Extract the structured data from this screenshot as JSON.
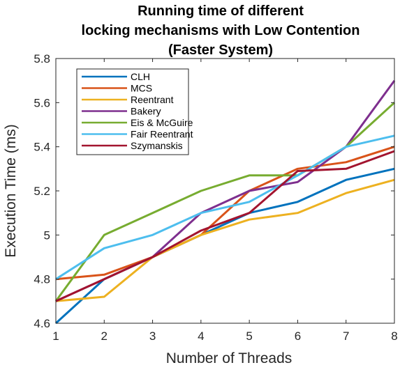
{
  "chart_data": {
    "type": "line",
    "title_lines": [
      "Running time of different",
      "locking mechanisms with Low Contention",
      "(Faster System)"
    ],
    "xlabel": "Number of Threads",
    "ylabel": "Execution Time (ms)",
    "xlim": [
      1,
      8
    ],
    "ylim": [
      4.6,
      5.8
    ],
    "xticks": [
      "1",
      "2",
      "3",
      "4",
      "5",
      "6",
      "7",
      "8"
    ],
    "yticks": [
      "4.6",
      "4.8",
      "5",
      "5.2",
      "5.4",
      "5.6",
      "5.8"
    ],
    "x": [
      1,
      2,
      3,
      4,
      5,
      6,
      7,
      8
    ],
    "grid": false,
    "legend_position": "top-left",
    "series": [
      {
        "name": "CLH",
        "color": "#0072BD",
        "values": [
          4.6,
          4.8,
          4.9,
          5.0,
          5.1,
          5.15,
          5.25,
          5.3
        ]
      },
      {
        "name": "MCS",
        "color": "#D95319",
        "values": [
          4.8,
          4.82,
          4.9,
          5.0,
          5.2,
          5.3,
          5.33,
          5.4
        ]
      },
      {
        "name": "Reentrant",
        "color": "#EDB120",
        "values": [
          4.7,
          4.72,
          4.9,
          5.0,
          5.07,
          5.1,
          5.19,
          5.25
        ]
      },
      {
        "name": "Bakery",
        "color": "#7E2F8E",
        "values": [
          4.7,
          4.8,
          4.9,
          5.1,
          5.2,
          5.24,
          5.4,
          5.7
        ]
      },
      {
        "name": "Eis & McGuire",
        "color": "#77AC30",
        "values": [
          4.7,
          5.0,
          5.1,
          5.2,
          5.27,
          5.27,
          5.4,
          5.6
        ]
      },
      {
        "name": "Fair Reentrant",
        "color": "#4DBEEE",
        "values": [
          4.8,
          4.94,
          5.0,
          5.1,
          5.15,
          5.27,
          5.4,
          5.45
        ]
      },
      {
        "name": "Szymanskis",
        "color": "#A2142F",
        "values": [
          4.7,
          4.8,
          4.9,
          5.02,
          5.1,
          5.29,
          5.3,
          5.38
        ]
      }
    ]
  }
}
